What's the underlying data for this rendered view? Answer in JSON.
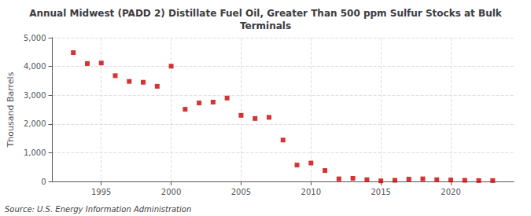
{
  "chart_data": {
    "type": "scatter",
    "title": "Annual Midwest (PADD 2) Distillate Fuel Oil, Greater Than 500 ppm Sulfur Stocks at Bulk\nTerminals",
    "ylabel": "Thousand Barrels",
    "annotations": [
      "Source: U.S. Energy Information Administration"
    ],
    "x": [
      1993,
      1994,
      1995,
      1996,
      1997,
      1998,
      1999,
      2000,
      2001,
      2002,
      2003,
      2004,
      2005,
      2006,
      2007,
      2008,
      2009,
      2010,
      2011,
      2012,
      2013,
      2014,
      2015,
      2016,
      2017,
      2018,
      2019,
      2020,
      2021,
      2022,
      2023
    ],
    "values": [
      4480,
      4100,
      4120,
      3680,
      3480,
      3450,
      3310,
      4010,
      2510,
      2730,
      2760,
      2900,
      2300,
      2190,
      2230,
      1440,
      570,
      640,
      380,
      90,
      110,
      60,
      20,
      40,
      80,
      90,
      60,
      50,
      40,
      30,
      30
    ],
    "color": "#cc0000",
    "marker": "square",
    "xlim": [
      1991.5,
      2024.5
    ],
    "xticks": [
      1995,
      2000,
      2005,
      2010,
      2015,
      2020
    ],
    "ylim": [
      0,
      5000
    ],
    "yticks": [
      0,
      {
        "value": 1000,
        "label": "1,000"
      },
      {
        "value": 2000,
        "label": "2,000"
      },
      {
        "value": 3000,
        "label": "3,000"
      },
      {
        "value": 4000,
        "label": "4,000"
      },
      {
        "value": 5000,
        "label": "5,000"
      }
    ],
    "grid": true
  }
}
